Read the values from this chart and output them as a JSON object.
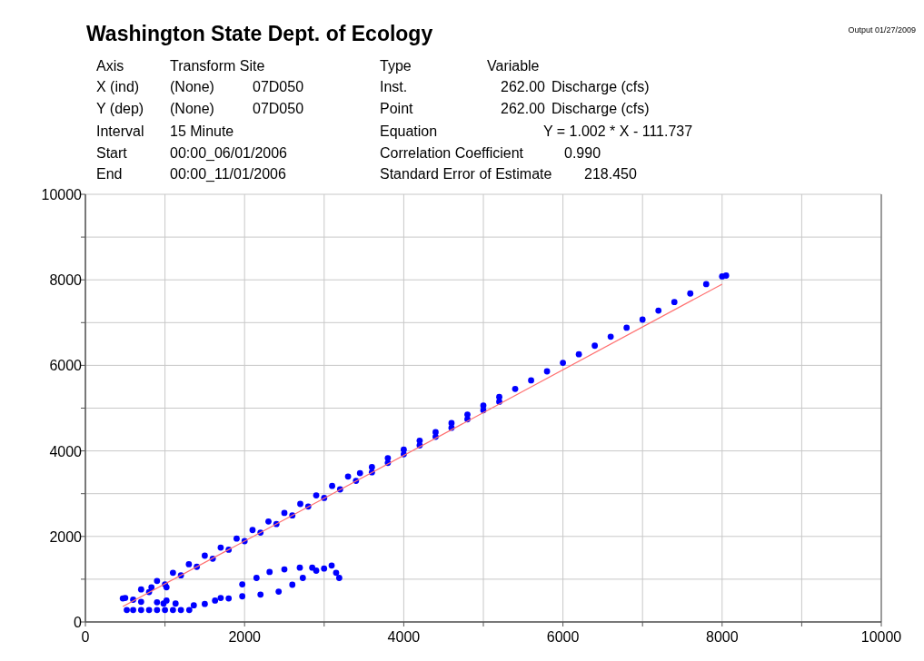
{
  "chart_data": {
    "type": "scatter",
    "title": "Washington State Dept. of Ecology",
    "subtitle": "Output 01/27/2009",
    "annotations": [
      "Axis",
      "Transform Site",
      "Type",
      "Variable",
      "X (ind)",
      "(None)",
      "07D050",
      "Inst.",
      "262.00",
      "Discharge (cfs)",
      "Y (dep)",
      "(None)",
      "07D050",
      "Point",
      "262.00",
      "Discharge (cfs)",
      "Interval",
      "15 Minute",
      "Equation",
      "Y = 1.002 * X - 111.737",
      "Start",
      "00:00_06/01/2006",
      "Correlation Coefficient",
      "0.990",
      "End",
      "00:00_11/01/2006",
      "Standard Error of Estimate",
      "218.450"
    ],
    "xlim": [
      0,
      10000
    ],
    "ylim": [
      0,
      10000
    ],
    "xticks": [
      0,
      {
        "value": 1000,
        "label": null
      },
      2000,
      {
        "value": 3000,
        "label": null
      },
      4000,
      {
        "value": 5000,
        "label": null
      },
      6000,
      {
        "value": 7000,
        "label": null
      },
      8000,
      {
        "value": 9000,
        "label": null
      },
      10000
    ],
    "yticks": [
      0,
      {
        "value": 1000,
        "label": null
      },
      2000,
      {
        "value": 3000,
        "label": null
      },
      4000,
      {
        "value": 5000,
        "label": null
      },
      6000,
      {
        "value": 7000,
        "label": null
      },
      8000,
      {
        "value": 9000,
        "label": null
      },
      10000
    ],
    "grid": true,
    "marker": "circle",
    "series": [
      {
        "color": "#0000ff",
        "x": [
          500,
          700,
          900,
          1100,
          1300,
          1500,
          1700,
          1900,
          2100,
          2300,
          2500,
          2700,
          2900,
          3100,
          3300,
          3450,
          3600,
          3800,
          4000,
          4200,
          4400,
          4600,
          4800,
          5000,
          5200,
          5400,
          5600,
          5800,
          6000,
          6200,
          6400,
          6600,
          6800,
          7000,
          7200,
          7400,
          7600,
          7800,
          8000,
          8050,
          600,
          800,
          1000,
          1200,
          1400,
          1600,
          1800,
          2000,
          2200,
          2400,
          2600,
          2800,
          3000,
          3200,
          3400,
          3600,
          3800,
          4000,
          4200,
          4400,
          4600,
          4800,
          5000,
          5200,
          470,
          700,
          900,
          1100,
          1305,
          1500,
          1700,
          1971,
          2150,
          2314,
          2500,
          2694,
          2850,
          2999,
          3094,
          3150,
          3189,
          2900,
          2732,
          2600,
          2428,
          2200,
          1971,
          1800,
          1629,
          1362,
          1133,
          982,
          1019,
          1019,
          830,
          900,
          700,
          600,
          520,
          800,
          1000,
          1200
        ],
        "values": [
          560,
          760,
          960,
          1150,
          1350,
          1550,
          1740,
          1950,
          2150,
          2350,
          2550,
          2760,
          2960,
          3180,
          3400,
          3480,
          3620,
          3830,
          4030,
          4240,
          4440,
          4650,
          4850,
          5060,
          5260,
          5450,
          5650,
          5860,
          6060,
          6260,
          6460,
          6670,
          6880,
          7070,
          7280,
          7480,
          7680,
          7900,
          8080,
          8100,
          520,
          700,
          880,
          1090,
          1290,
          1480,
          1690,
          1890,
          2090,
          2290,
          2490,
          2700,
          2900,
          3100,
          3300,
          3500,
          3720,
          3920,
          4130,
          4330,
          4540,
          4740,
          4950,
          5150,
          550,
          280,
          280,
          280,
          280,
          420,
          560,
          880,
          1030,
          1170,
          1230,
          1270,
          1270,
          1250,
          1320,
          1150,
          1030,
          1200,
          1030,
          870,
          710,
          640,
          600,
          550,
          500,
          390,
          430,
          430,
          810,
          500,
          810,
          460,
          470,
          280,
          280,
          280,
          280,
          280
        ]
      },
      {
        "type": "line",
        "marker": "none",
        "color": "#ff7070",
        "x": [
          470,
          8000
        ],
        "values": [
          360,
          7900
        ]
      }
    ]
  }
}
